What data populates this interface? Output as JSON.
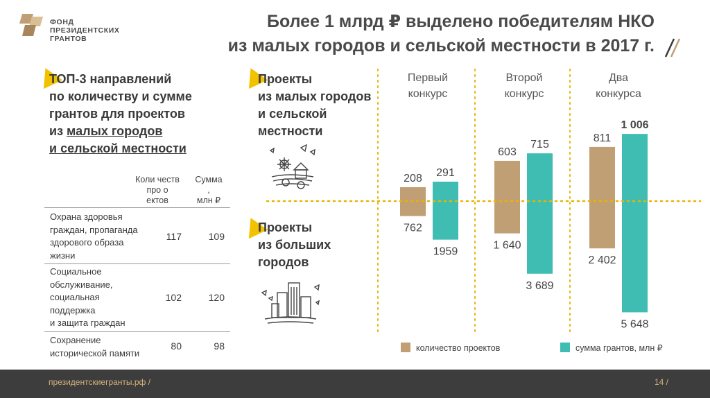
{
  "brand": {
    "logo_lines": [
      "ФОНД",
      "ПРЕЗИДЕНТСКИХ",
      "ГРАНТОВ"
    ]
  },
  "title_lines": [
    "Более 1 млрд ₽ выделено победителям НКО",
    "из малых городов и сельской местности в 2017 г."
  ],
  "left": {
    "heading_lines": [
      "ТОП-3 направлений",
      "по количеству и сумме",
      "грантов для проектов"
    ],
    "heading_underlined_prefix": "из ",
    "heading_underlined_text": "малых городов",
    "heading_last_line": "и сельской местности",
    "table": {
      "header_count_lines": [
        "Коли честв",
        "про о",
        "ектов"
      ],
      "header_sum_lines": [
        "Сумма",
        ",",
        "млн ₽"
      ],
      "rows": [
        {
          "label_lines": [
            "Охрана здоровья",
            "граждан, пропаганда",
            "здорового образа",
            "жизни"
          ],
          "count": "117",
          "sum": "109"
        },
        {
          "label_lines": [
            "Социальное",
            "обслуживание,",
            "социальная",
            "поддержка",
            "и защита граждан"
          ],
          "count": "102",
          "sum": "120"
        },
        {
          "label_lines": [
            "Сохранение",
            "исторической памяти"
          ],
          "count": "80",
          "sum": "98"
        }
      ]
    }
  },
  "right": {
    "small_towns_lines": [
      "Проекты",
      "из малых городов",
      "и сельской",
      "местности"
    ],
    "big_cities_lines": [
      "Проекты",
      "из больших",
      "городов"
    ]
  },
  "chart_data": {
    "type": "bar",
    "title": "Более 1 млрд ₽ выделено победителям НКО из малых городов и сельской местности в 2017 г.",
    "categories": [
      "Первый конкурс",
      "Второй конкурс",
      "Два конкурса"
    ],
    "category_lines": [
      [
        "Первый",
        "конкурс"
      ],
      [
        "Второй",
        "конкурс"
      ],
      [
        "Два",
        "конкурса"
      ]
    ],
    "series": [
      {
        "name": "количество проектов",
        "color": "#c19f74",
        "small_towns": [
          208,
          603,
          811
        ],
        "small_towns_labels": [
          "208",
          "603",
          "811"
        ],
        "big_cities": [
          762,
          1640,
          2402
        ],
        "big_cities_labels": [
          "762",
          "1 640",
          "2 402"
        ]
      },
      {
        "name": "сумма грантов, млн ₽",
        "color": "#3fbdb3",
        "small_towns": [
          291,
          715,
          1006
        ],
        "small_towns_labels": [
          "291",
          "715",
          "1 006"
        ],
        "big_cities": [
          1959,
          3689,
          5648
        ],
        "big_cities_labels": [
          "1959",
          "3 689",
          "5 648"
        ]
      }
    ],
    "legend_position": "bottom",
    "highlight_label": "1 006"
  },
  "legend": {
    "count_label": "количество проектов",
    "sum_label": "сумма грантов, млн ₽"
  },
  "footer": {
    "link": "президентскиегранты.рф  /",
    "page": "14  /"
  },
  "colors": {
    "gold": "#c19f74",
    "teal": "#3fbdb3",
    "accent_yellow": "#f2c200",
    "dotted_line": "#e8b400",
    "footer_bg": "#3d3d3d"
  }
}
